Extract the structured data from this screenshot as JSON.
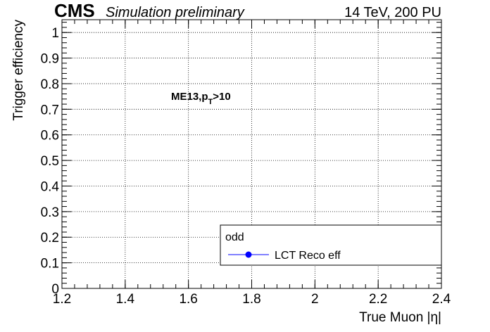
{
  "header": {
    "experiment": "CMS",
    "status": "Simulation preliminary",
    "conditions": "14 TeV, 200 PU"
  },
  "annotation": {
    "prefix": "ME13,p",
    "subscript": "T",
    "suffix": ">10"
  },
  "chart_data": {
    "type": "scatter",
    "title": "",
    "xlabel": "True Muon |η|",
    "ylabel": "Trigger efficiency",
    "xlim": [
      1.2,
      2.4
    ],
    "ylim": [
      0,
      1.05
    ],
    "x_ticks": [
      "1.2",
      "1.4",
      "1.6",
      "1.8",
      "2",
      "2.2",
      "2.4"
    ],
    "y_ticks": [
      "0",
      "0.1",
      "0.2",
      "0.3",
      "0.4",
      "0.5",
      "0.6",
      "0.7",
      "0.8",
      "0.9",
      "1"
    ],
    "grid": true,
    "legend": {
      "position": "bottom-right",
      "header": "odd",
      "entries": [
        {
          "label": "LCT Reco eff",
          "marker": "circle",
          "color": "#0000ff"
        }
      ]
    },
    "series": [
      {
        "name": "LCT Reco eff",
        "color": "#0000ff",
        "points": []
      }
    ]
  }
}
